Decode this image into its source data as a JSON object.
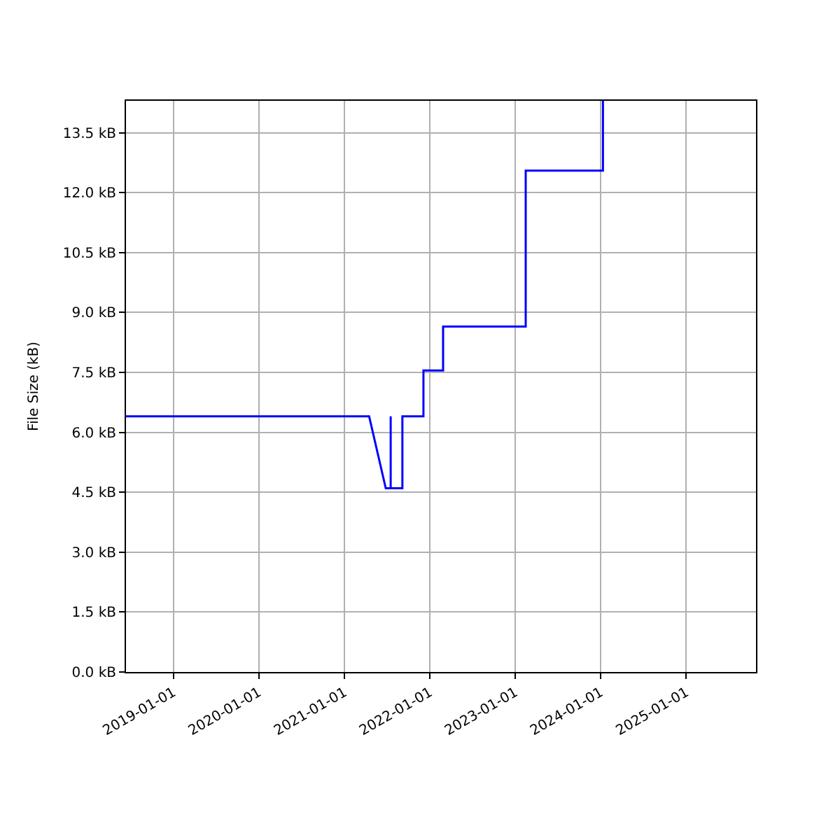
{
  "chart_data": {
    "type": "line",
    "ylabel": "File Size (kB)",
    "x": [
      "2018-06-13",
      "2021-04-17",
      "2021-06-27",
      "2021-07-18",
      "2021-07-18",
      "2021-07-18",
      "2021-09-06",
      "2021-09-06",
      "2021-12-05",
      "2021-12-05",
      "2022-02-27",
      "2022-02-27",
      "2023-02-15",
      "2023-02-15",
      "2024-01-11",
      "2024-01-11"
    ],
    "series": [
      {
        "color": "#0000ff",
        "values": [
          6.4,
          6.4,
          4.6,
          4.6,
          6.4,
          4.6,
          4.6,
          6.4,
          6.4,
          7.55,
          7.55,
          8.65,
          8.65,
          12.55,
          12.55,
          14.3
        ]
      }
    ],
    "xlim": [
      "2018-06-13",
      "2025-10-26"
    ],
    "xticks": [
      {
        "value": "2019-01-01",
        "label": "2019-01-01"
      },
      {
        "value": "2020-01-01",
        "label": "2020-01-01"
      },
      {
        "value": "2021-01-01",
        "label": "2021-01-01"
      },
      {
        "value": "2022-01-01",
        "label": "2022-01-01"
      },
      {
        "value": "2023-01-01",
        "label": "2023-01-01"
      },
      {
        "value": "2024-01-01",
        "label": "2024-01-01"
      },
      {
        "value": "2025-01-01",
        "label": "2025-01-01"
      }
    ],
    "ylim": [
      0,
      14.3
    ],
    "yticks": [
      {
        "value": 0,
        "label": "0.0 kB"
      },
      {
        "value": 1.5,
        "label": "1.5 kB"
      },
      {
        "value": 3,
        "label": "3.0 kB"
      },
      {
        "value": 4.5,
        "label": "4.5 kB"
      },
      {
        "value": 6,
        "label": "6.0 kB"
      },
      {
        "value": 7.5,
        "label": "7.5 kB"
      },
      {
        "value": 9,
        "label": "9.0 kB"
      },
      {
        "value": 10.5,
        "label": "10.5 kB"
      },
      {
        "value": 12,
        "label": "12.0 kB"
      },
      {
        "value": 13.5,
        "label": "13.5 kB"
      }
    ],
    "grid": true,
    "legend": false,
    "marker": "none",
    "line_style": "solid"
  }
}
